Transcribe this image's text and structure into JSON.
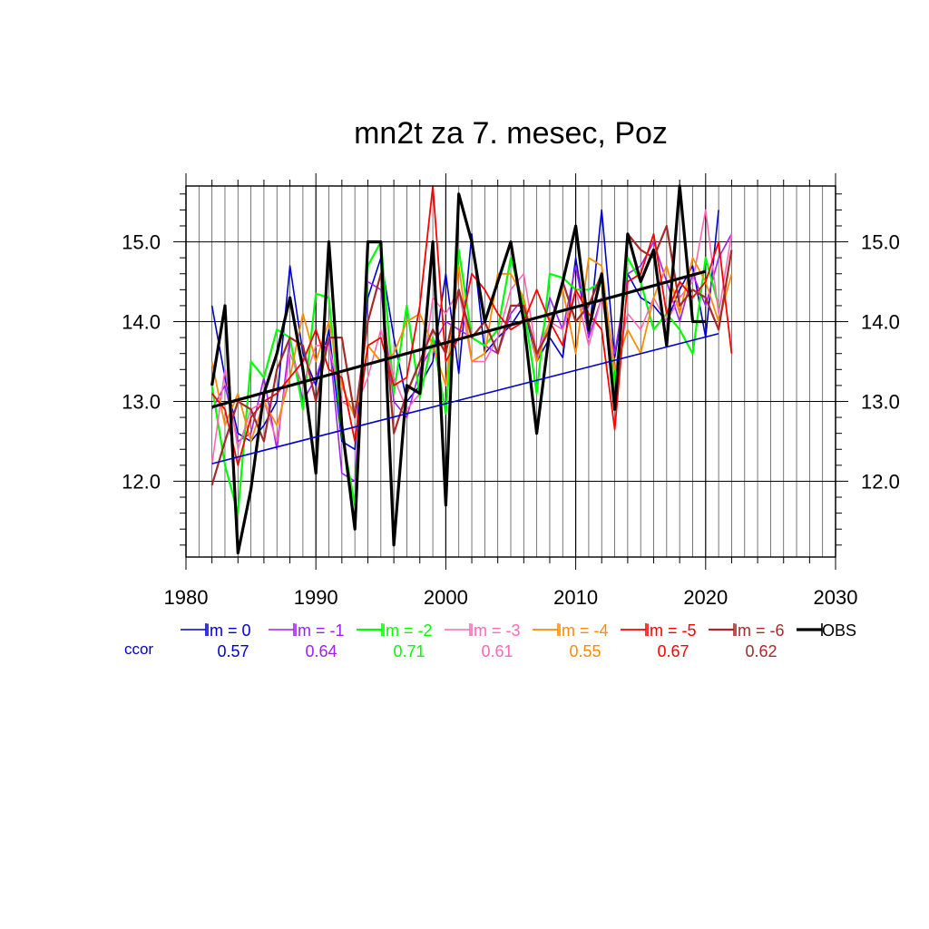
{
  "chart_data": {
    "type": "line",
    "title": "mn2t za 7. mesec, Poz",
    "xlabel": "",
    "ylabel": "",
    "xlim": [
      1980,
      2030
    ],
    "ylim": [
      11.05,
      15.7
    ],
    "x_ticks": [
      1980,
      1990,
      2000,
      2010,
      2020,
      2030
    ],
    "x_tick_labels": [
      "1980",
      "1990",
      "2000",
      "2010",
      "2020",
      "2030"
    ],
    "y_ticks": [
      12.0,
      13.0,
      14.0,
      15.0
    ],
    "y_tick_labels": [
      "12.0",
      "13.0",
      "14.0",
      "15.0"
    ],
    "grid": true,
    "legend_position": "bottom",
    "ccor_label": "ccor",
    "series": [
      {
        "name": "lm = 0",
        "color": "#0000cc",
        "width": 1.6,
        "ccor": "0.57",
        "x": [
          1982,
          1983,
          1984,
          1985,
          1986,
          1987,
          1988,
          1989,
          1990,
          1991,
          1992,
          1993,
          1994,
          1995,
          1996,
          1997,
          1998,
          1999,
          2000,
          2001,
          2002,
          2003,
          2004,
          2005,
          2006,
          2007,
          2008,
          2009,
          2010,
          2011,
          2012,
          2013,
          2014,
          2015,
          2016,
          2017,
          2018,
          2019,
          2020,
          2021
        ],
        "y": [
          14.2,
          13.3,
          12.6,
          12.5,
          12.7,
          13.0,
          14.7,
          13.6,
          13.2,
          13.9,
          12.5,
          12.4,
          14.3,
          14.8,
          13.8,
          13.0,
          13.2,
          13.5,
          14.6,
          13.35,
          15.1,
          13.6,
          13.8,
          13.95,
          14.2,
          13.5,
          13.8,
          13.55,
          14.8,
          13.8,
          15.4,
          13.55,
          14.6,
          14.3,
          14.2,
          14.0,
          14.4,
          14.7,
          13.8,
          15.4
        ]
      },
      {
        "name": "lm = -1",
        "color": "#a020f0",
        "width": 1.6,
        "ccor": "0.64",
        "x": [
          1982,
          1983,
          1984,
          1985,
          1986,
          1987,
          1988,
          1989,
          1990,
          1991,
          1992,
          1993,
          1994,
          1995,
          1996,
          1997,
          1998,
          1999,
          2000,
          2001,
          2002,
          2003,
          2004,
          2005,
          2006,
          2007,
          2008,
          2009,
          2010,
          2011,
          2012,
          2013,
          2014,
          2015,
          2016,
          2017,
          2018,
          2019,
          2020,
          2021,
          2022
        ],
        "y": [
          12.9,
          13.2,
          12.5,
          12.6,
          13.3,
          12.4,
          13.8,
          13.0,
          13.3,
          13.8,
          12.1,
          12.0,
          14.5,
          14.4,
          13.0,
          12.8,
          13.4,
          13.7,
          14.0,
          13.9,
          13.8,
          13.7,
          13.6,
          14.1,
          14.3,
          13.5,
          14.3,
          13.9,
          14.7,
          13.8,
          14.3,
          13.6,
          14.6,
          14.7,
          15.0,
          14.5,
          14.0,
          14.6,
          14.2,
          14.8,
          15.1
        ]
      },
      {
        "name": "lm = -2",
        "color": "#00ff00",
        "width": 2.2,
        "ccor": "0.71",
        "x": [
          1982,
          1983,
          1984,
          1985,
          1986,
          1987,
          1988,
          1989,
          1990,
          1991,
          1992,
          1993,
          1994,
          1995,
          1996,
          1997,
          1998,
          1999,
          2000,
          2001,
          2002,
          2003,
          2004,
          2005,
          2006,
          2007,
          2008,
          2009,
          2010,
          2011,
          2012,
          2013,
          2014,
          2015,
          2016,
          2017,
          2018,
          2019,
          2020,
          2021
        ],
        "y": [
          13.2,
          12.2,
          11.6,
          13.5,
          13.3,
          13.9,
          13.8,
          12.9,
          14.35,
          14.3,
          12.6,
          11.7,
          14.7,
          15.0,
          13.1,
          14.2,
          13.05,
          13.8,
          12.85,
          14.9,
          13.8,
          13.7,
          13.9,
          14.8,
          14.2,
          13.1,
          14.6,
          14.55,
          14.4,
          14.4,
          14.5,
          13.2,
          14.8,
          14.5,
          13.9,
          14.1,
          13.9,
          13.6,
          14.8,
          14.2
        ]
      },
      {
        "name": "lm = -3",
        "color": "#ff69b4",
        "width": 1.6,
        "ccor": "0.61",
        "x": [
          1982,
          1983,
          1984,
          1985,
          1986,
          1987,
          1988,
          1989,
          1990,
          1991,
          1992,
          1993,
          1994,
          1995,
          1996,
          1997,
          1998,
          1999,
          2000,
          2001,
          2002,
          2003,
          2004,
          2005,
          2006,
          2007,
          2008,
          2009,
          2010,
          2011,
          2012,
          2013,
          2014,
          2015,
          2016,
          2017,
          2018,
          2019,
          2020,
          2021,
          2022
        ],
        "y": [
          12.2,
          13.4,
          12.4,
          12.9,
          13.0,
          12.5,
          13.6,
          13.2,
          13.7,
          13.7,
          13.0,
          12.9,
          13.3,
          13.9,
          13.3,
          12.9,
          13.1,
          14.3,
          14.1,
          14.4,
          13.5,
          13.5,
          13.8,
          14.4,
          14.6,
          13.6,
          14.0,
          13.9,
          14.4,
          13.7,
          14.3,
          13.4,
          14.1,
          13.9,
          14.3,
          14.0,
          14.3,
          14.5,
          15.4,
          14.1,
          15.1
        ]
      },
      {
        "name": "lm = -4",
        "color": "#ff8c00",
        "width": 1.8,
        "ccor": "0.55",
        "x": [
          1982,
          1983,
          1984,
          1985,
          1986,
          1987,
          1988,
          1989,
          1990,
          1991,
          1992,
          1993,
          1994,
          1995,
          1996,
          1997,
          1998,
          1999,
          2000,
          2001,
          2002,
          2003,
          2004,
          2005,
          2006,
          2007,
          2008,
          2009,
          2010,
          2011,
          2012,
          2013,
          2014,
          2015,
          2016,
          2017,
          2018,
          2019,
          2020,
          2021,
          2022
        ],
        "y": [
          13.5,
          12.7,
          13.1,
          12.5,
          13.0,
          12.7,
          13.3,
          14.1,
          13.5,
          14.0,
          13.2,
          12.8,
          13.7,
          13.5,
          13.6,
          14.0,
          14.1,
          13.7,
          13.2,
          14.7,
          13.5,
          13.6,
          14.6,
          14.6,
          14.3,
          13.5,
          14.0,
          14.4,
          13.6,
          14.8,
          14.7,
          13.4,
          13.9,
          13.6,
          14.3,
          14.7,
          14.1,
          14.8,
          14.5,
          14.0,
          14.6
        ]
      },
      {
        "name": "lm = -5",
        "color": "#ff0000",
        "width": 1.8,
        "ccor": "0.67",
        "x": [
          1982,
          1983,
          1984,
          1985,
          1986,
          1987,
          1988,
          1989,
          1990,
          1991,
          1992,
          1993,
          1994,
          1995,
          1996,
          1997,
          1998,
          1999,
          2000,
          2001,
          2002,
          2003,
          2004,
          2005,
          2006,
          2007,
          2008,
          2009,
          2010,
          2011,
          2012,
          2013,
          2014,
          2015,
          2016,
          2017,
          2018,
          2019,
          2020,
          2021,
          2022
        ],
        "y": [
          13.1,
          12.9,
          12.2,
          12.8,
          13.0,
          13.1,
          13.3,
          13.5,
          13.9,
          13.4,
          13.3,
          12.5,
          13.7,
          13.8,
          13.2,
          13.3,
          14.2,
          15.7,
          13.5,
          13.8,
          14.6,
          14.4,
          14.1,
          13.9,
          14.0,
          14.4,
          14.0,
          13.7,
          14.4,
          14.1,
          13.9,
          12.65,
          14.5,
          14.6,
          15.1,
          14.1,
          14.5,
          14.3,
          14.5,
          15.0,
          13.6
        ]
      },
      {
        "name": "lm = -6",
        "color": "#a52a2a",
        "width": 2.2,
        "ccor": "0.62",
        "x": [
          1982,
          1983,
          1984,
          1985,
          1986,
          1987,
          1988,
          1989,
          1990,
          1991,
          1992,
          1993,
          1994,
          1995,
          1996,
          1997,
          1998,
          1999,
          2000,
          2001,
          2002,
          2003,
          2004,
          2005,
          2006,
          2007,
          2008,
          2009,
          2010,
          2011,
          2012,
          2013,
          2014,
          2015,
          2016,
          2017,
          2018,
          2019,
          2020,
          2021,
          2022
        ],
        "y": [
          11.95,
          12.5,
          13.0,
          12.9,
          12.5,
          13.4,
          13.8,
          13.7,
          13.0,
          13.8,
          13.8,
          12.8,
          14.0,
          14.6,
          12.6,
          13.1,
          13.5,
          13.9,
          13.6,
          14.4,
          13.8,
          14.0,
          13.6,
          14.2,
          14.2,
          13.6,
          13.9,
          14.5,
          14.0,
          14.2,
          14.6,
          12.9,
          15.1,
          14.9,
          14.8,
          15.2,
          14.2,
          14.4,
          14.3,
          13.9,
          14.9
        ]
      },
      {
        "name": "OBS",
        "color": "#000000",
        "width": 3.2,
        "ccor": "",
        "x": [
          1982,
          1983,
          1984,
          1985,
          1986,
          1987,
          1988,
          1989,
          1990,
          1991,
          1992,
          1993,
          1994,
          1995,
          1996,
          1997,
          1998,
          1999,
          2000,
          2001,
          2002,
          2003,
          2004,
          2005,
          2006,
          2007,
          2008,
          2009,
          2010,
          2011,
          2012,
          2013,
          2014,
          2015,
          2016,
          2017,
          2018,
          2019,
          2020
        ],
        "y": [
          13.2,
          14.2,
          11.1,
          11.9,
          13.1,
          13.6,
          14.3,
          13.4,
          12.1,
          15.0,
          12.7,
          11.4,
          15.0,
          15.0,
          11.2,
          13.2,
          13.1,
          15.0,
          11.7,
          15.6,
          15.0,
          14.0,
          14.5,
          15.0,
          14.0,
          12.6,
          13.9,
          14.5,
          15.2,
          13.9,
          14.6,
          12.9,
          15.1,
          14.5,
          14.9,
          13.7,
          15.7,
          14.0,
          14.0
        ]
      }
    ],
    "trend_lines": [
      {
        "color": "#0000cc",
        "width": 1.6,
        "x": [
          1982,
          2021
        ],
        "y": [
          12.22,
          13.85
        ]
      },
      {
        "color": "#000000",
        "width": 3.2,
        "x": [
          1982,
          2020
        ],
        "y": [
          12.93,
          14.63
        ]
      }
    ]
  }
}
